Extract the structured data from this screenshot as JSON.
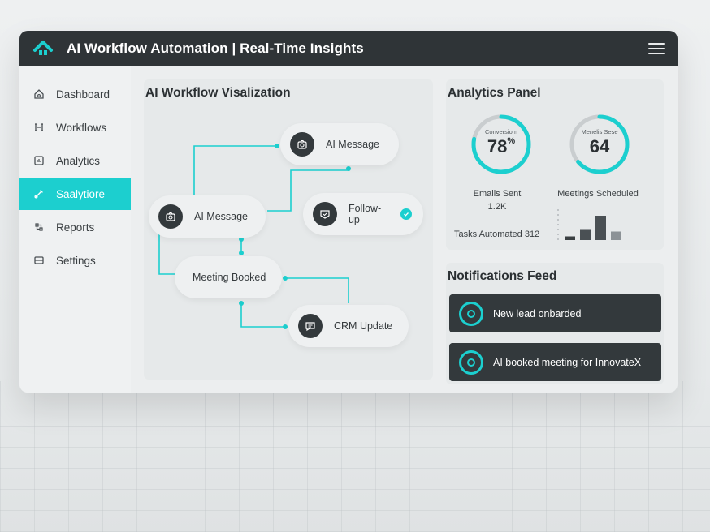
{
  "app": {
    "title": "AI Workflow Automation | Real-Time Insights"
  },
  "colors": {
    "accent": "#1ccfcf",
    "titlebar": "#2f3437",
    "dark_card": "#33393c"
  },
  "sidebar": {
    "items": [
      {
        "label": "Dashboard",
        "icon": "home-icon"
      },
      {
        "label": "Workflows",
        "icon": "workflow-icon"
      },
      {
        "label": "Analytics",
        "icon": "analytics-icon"
      },
      {
        "label": "Saalytiore",
        "icon": "wand-icon",
        "active": true
      },
      {
        "label": "Reports",
        "icon": "reports-icon"
      },
      {
        "label": "Settings",
        "icon": "settings-icon"
      }
    ]
  },
  "workflow": {
    "title": "AI Workflow Visalization",
    "nodes": {
      "ai_message_top": "AI Message",
      "ai_message_left": "AI Message",
      "follow_up": "Follow-up",
      "meeting_booked": "Meeting Booked",
      "crm_update": "CRM Update"
    }
  },
  "analytics": {
    "title": "Analytics Panel",
    "conversion": {
      "label": "Conversiom",
      "value": "78",
      "unit": "%",
      "fraction": 0.78
    },
    "meetings_gauge": {
      "label": "Menelis Sese",
      "value": "64",
      "fraction": 0.64
    },
    "emails_sent": {
      "label": "Emails Sent",
      "value": "1.2K"
    },
    "meetings_scheduled": {
      "label": "Meetings Scheduled"
    },
    "tasks_automated": "Tasks Automated 312",
    "mini_chart": [
      0.15,
      0.45,
      1.0,
      0.35
    ]
  },
  "notifications": {
    "title": "Notifications Feed",
    "items": [
      "New lead onbarded",
      "AI booked meeting for InnovateX"
    ]
  }
}
